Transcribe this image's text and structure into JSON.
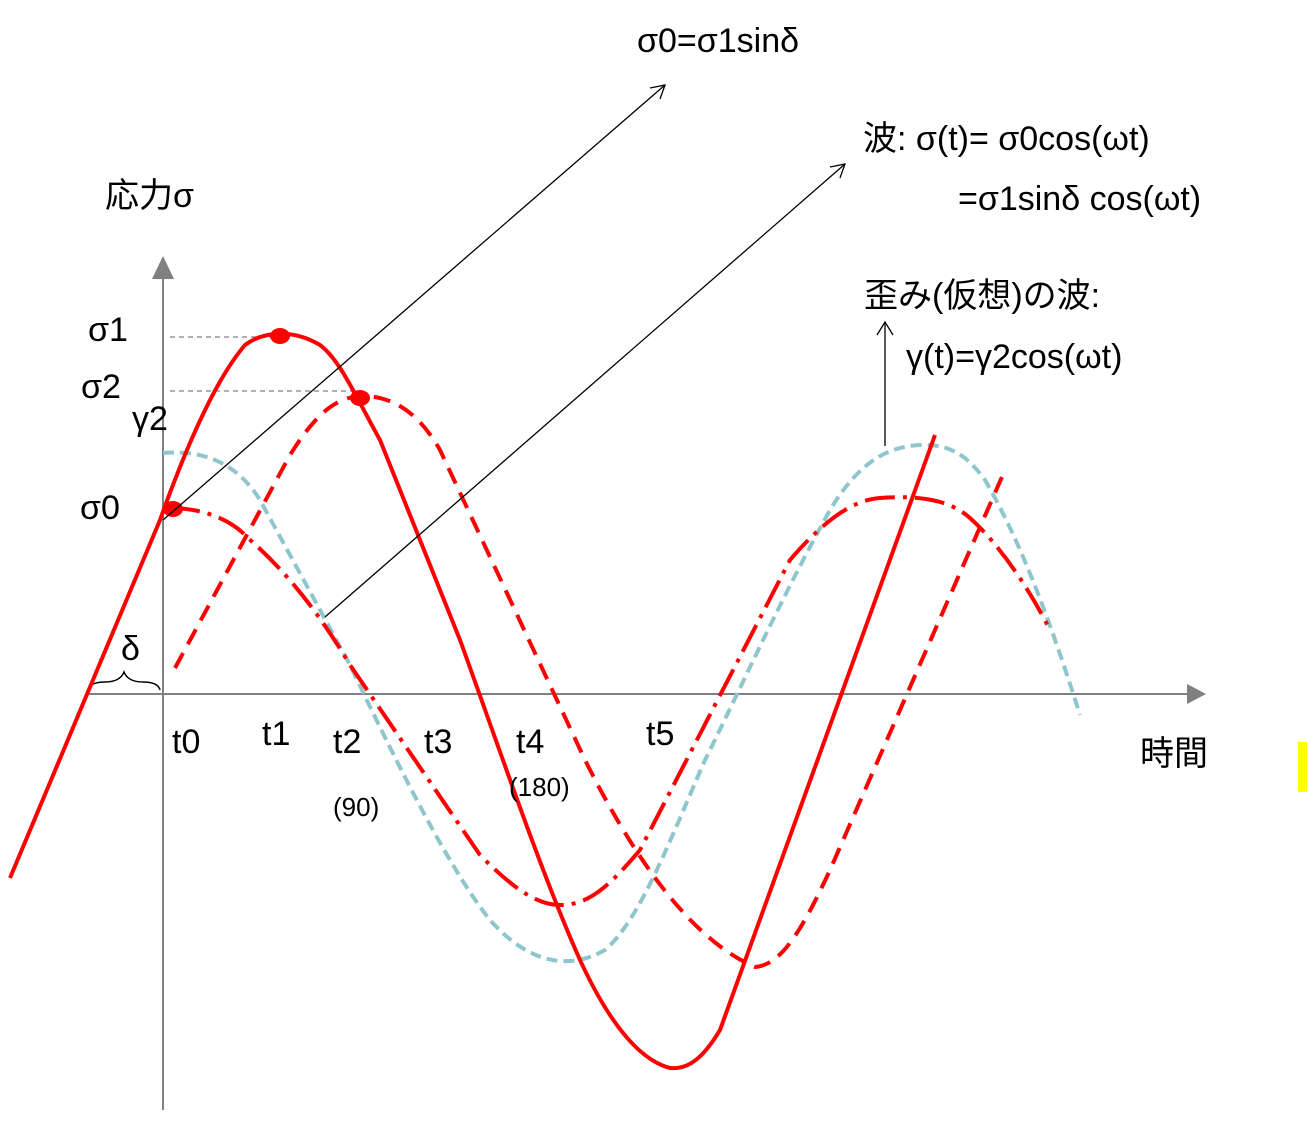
{
  "axes": {
    "y_label": "応力σ",
    "x_label": "時間"
  },
  "level_labels": {
    "sigma1": "σ1",
    "sigma2": "σ2",
    "gamma2": "γ2",
    "sigma0": "σ0",
    "delta": "δ"
  },
  "time_labels": {
    "t0": "t0",
    "t1": "t1",
    "t2": "t2",
    "t2_sub": "(90)",
    "t3": "t3",
    "t4": "t4",
    "t4_sub": "(180)",
    "t5": "t5"
  },
  "annotations": {
    "sigma0_relation": "σ0=σ1sinδ",
    "stress_wave_line1": "波: σ(t)= σ0cos(ωt)",
    "stress_wave_line2": "=σ1sinδ cos(ωt)",
    "strain_wave_line1": "歪み(仮想)の波:",
    "strain_wave_line2": "γ(t)=γ2cos(ωt)"
  },
  "colors": {
    "axis": "#808080",
    "stress": "#ff0000",
    "strain": "#8fc6cc",
    "arrow": "#000000",
    "guide": "#808080",
    "highlight": "#ffff00"
  }
}
